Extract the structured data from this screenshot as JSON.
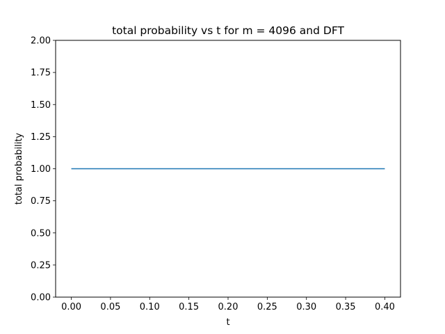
{
  "chart_data": {
    "type": "line",
    "title": "total probability vs t for m = 4096 and DFT",
    "xlabel": "t",
    "ylabel": "total probability",
    "xlim": [
      -0.02,
      0.42
    ],
    "ylim": [
      0.0,
      2.0
    ],
    "xticks": [
      0.0,
      0.05,
      0.1,
      0.15,
      0.2,
      0.25,
      0.3,
      0.35,
      0.4
    ],
    "xtick_labels": [
      "0.00",
      "0.05",
      "0.10",
      "0.15",
      "0.20",
      "0.25",
      "0.30",
      "0.35",
      "0.40"
    ],
    "yticks": [
      0.0,
      0.25,
      0.5,
      0.75,
      1.0,
      1.25,
      1.5,
      1.75,
      2.0
    ],
    "ytick_labels": [
      "0.00",
      "0.25",
      "0.50",
      "0.75",
      "1.00",
      "1.25",
      "1.50",
      "1.75",
      "2.00"
    ],
    "grid": false,
    "series": [
      {
        "color": "#1f77b4",
        "x": [
          0.0,
          0.4
        ],
        "y": [
          1.0,
          1.0
        ]
      }
    ]
  }
}
